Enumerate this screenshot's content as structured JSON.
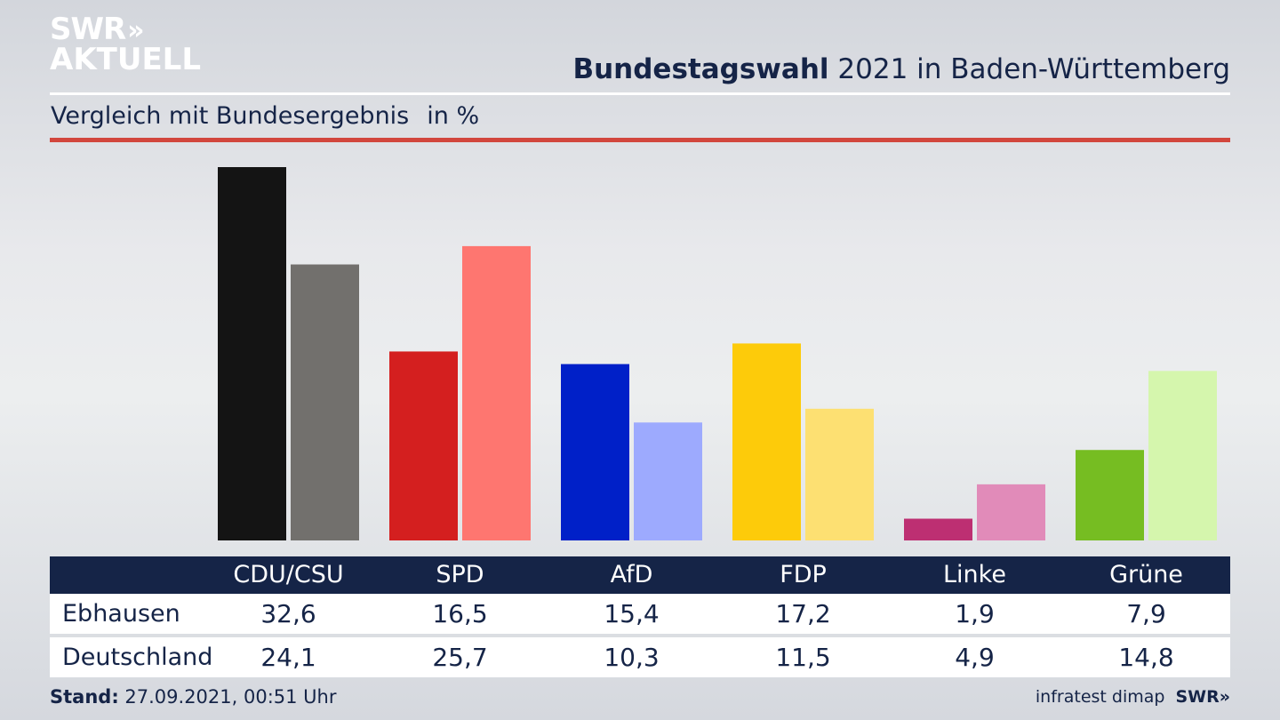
{
  "brand": {
    "line1": "SWR",
    "chevrons": "»",
    "line2": "AKTUELL"
  },
  "header": {
    "title_bold": "Bundestagswahl",
    "title_rest": " 2021 in Baden-Württemberg",
    "subtitle": "Vergleich mit Bundesergebnis",
    "unit": "in %"
  },
  "table": {
    "row_labels": [
      "Ebhausen",
      "Deutschland"
    ]
  },
  "footer": {
    "stand_label": "Stand:",
    "stand_value": " 27.09.2021, 00:51 Uhr",
    "source": "infratest dimap",
    "brand": "SWR»"
  },
  "colors": {
    "navy": "#152447",
    "accent_red": "#d2463d"
  },
  "chart_data": {
    "type": "bar",
    "categories": [
      "CDU/CSU",
      "SPD",
      "AfD",
      "FDP",
      "Linke",
      "Grüne"
    ],
    "series": [
      {
        "name": "Ebhausen",
        "values": [
          32.6,
          16.5,
          15.4,
          17.2,
          1.9,
          7.9
        ],
        "colors": [
          "#141414",
          "#d41f1f",
          "#0020c8",
          "#fdcb0a",
          "#bd2f72",
          "#76bd22"
        ],
        "labels": [
          "32,6",
          "16,5",
          "15,4",
          "17,2",
          "1,9",
          "7,9"
        ]
      },
      {
        "name": "Deutschland",
        "values": [
          24.1,
          25.7,
          10.3,
          11.5,
          4.9,
          14.8
        ],
        "colors": [
          "#72706d",
          "#fe7670",
          "#9daafe",
          "#fde072",
          "#e18bb9",
          "#d5f6ad"
        ],
        "labels": [
          "24,1",
          "25,7",
          "10,3",
          "11,5",
          "4,9",
          "14,8"
        ]
      }
    ],
    "ylim": [
      0,
      32.6
    ],
    "grid": false,
    "legend": "table below chart"
  }
}
